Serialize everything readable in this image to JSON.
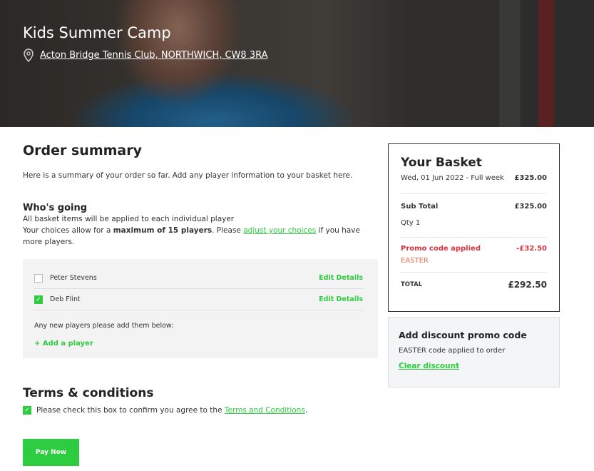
{
  "hero": {
    "title": "Kids Summer Camp",
    "location": "Acton Bridge Tennis Club, NORTHWICH, CW8 3RA",
    "icon": "map-pin-icon"
  },
  "order": {
    "title": "Order summary",
    "intro": "Here is a summary of your order so far. Add any player information to your basket here."
  },
  "whos_going": {
    "title": "Who's going",
    "line1": "All basket items will be applied to each individual player",
    "line2_pre": "Your choices allow for a ",
    "line2_bold": "maximum of 15 players",
    "line2_mid": ". Please ",
    "line2_link": "adjust your choices",
    "line2_post": " if you have more players.",
    "players": [
      {
        "name": "Peter Stevens",
        "checked": false,
        "action": "Edit Details"
      },
      {
        "name": "Deb Flint",
        "checked": true,
        "action": "Edit Details"
      }
    ],
    "new_players_text": "Any new players please add them below:",
    "add_player": "+ Add a player"
  },
  "terms": {
    "title": "Terms & conditions",
    "text": "Please check this box to confirm you agree to the ",
    "link": "Terms and Conditions",
    "end": ".",
    "checked": true
  },
  "pay_button": "Pay Now",
  "basket": {
    "title": "Your Basket",
    "item": "Wed, 01 Jun 2022 - Full week",
    "item_price": "£325.00",
    "subtotal_label": "Sub Total",
    "subtotal": "£325.00",
    "qty": "Qty 1",
    "promo_label": "Promo code applied",
    "promo_amount": "-£32.50",
    "promo_code": "EASTER",
    "total_label": "TOTAL",
    "total": "£292.50"
  },
  "discount": {
    "title": "Add discount promo code",
    "status": "EASTER code applied to order",
    "clear": "Clear discount"
  },
  "colors": {
    "accent": "#2ecc40",
    "promo": "#d9343c"
  }
}
